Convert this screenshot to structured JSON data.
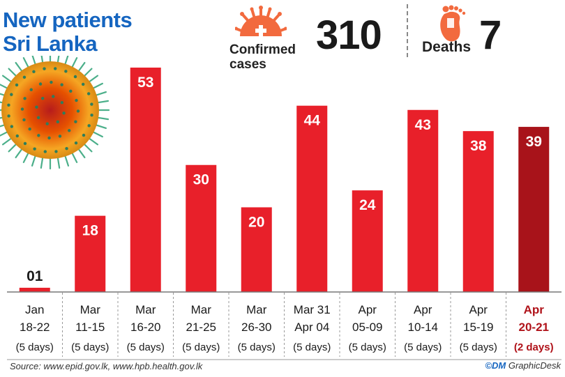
{
  "title": {
    "line1": "New patients",
    "line2": "Sri Lanka"
  },
  "stats": {
    "cases_label_line1": "Confirmed",
    "cases_label_line2": "cases",
    "cases_value": "310",
    "deaths_label": "Deaths",
    "deaths_value": "7"
  },
  "colors": {
    "bar": "#e8202a",
    "bar_highlight": "#a8131a",
    "title": "#1565c0",
    "icon": "#f26a3e"
  },
  "chart_data": {
    "type": "bar",
    "categories": [
      {
        "line1": "Jan",
        "line2": "18-22",
        "days": "(5 days)"
      },
      {
        "line1": "Mar",
        "line2": "11-15",
        "days": "(5 days)"
      },
      {
        "line1": "Mar",
        "line2": "16-20",
        "days": "(5 days)"
      },
      {
        "line1": "Mar",
        "line2": "21-25",
        "days": "(5 days)"
      },
      {
        "line1": "Mar",
        "line2": "26-30",
        "days": "(5 days)"
      },
      {
        "line1": "Mar 31",
        "line2": "Apr 04",
        "days": "(5 days)"
      },
      {
        "line1": "Apr",
        "line2": "05-09",
        "days": "(5 days)"
      },
      {
        "line1": "Apr",
        "line2": "10-14",
        "days": "(5 days)"
      },
      {
        "line1": "Apr",
        "line2": "15-19",
        "days": "(5 days)"
      },
      {
        "line1": "Apr",
        "line2": "20-21",
        "days": "(2 days)"
      }
    ],
    "values": [
      1,
      18,
      53,
      30,
      20,
      44,
      24,
      43,
      38,
      39
    ],
    "value_labels": [
      "01",
      "18",
      "53",
      "30",
      "20",
      "44",
      "24",
      "43",
      "38",
      "39"
    ],
    "highlighted_index": 9
  },
  "footer": {
    "source": "Source: www.epid.gov.lk, www.hpb.health.gov.lk",
    "credit_mark": "©DM",
    "credit_text": "GraphicDesk"
  }
}
